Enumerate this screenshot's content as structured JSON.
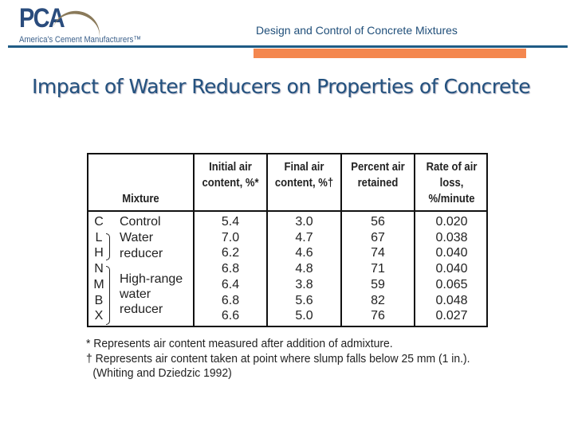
{
  "header": {
    "logo_text": "PCA",
    "logo_tagline": "America's Cement Manufacturers™",
    "title": "Design and Control of Concrete Mixtures",
    "accent_blue": "#1f5c85",
    "accent_orange": "#f4874f"
  },
  "slide_title": "Impact of Water Reducers on Properties of Concrete",
  "table": {
    "headers": [
      "Mixture",
      "Initial air content, %*",
      "Final air content, %†",
      "Percent air retained",
      "Rate of air loss, %/minute"
    ],
    "mixture_codes": [
      "C",
      "L",
      "H",
      "N",
      "M",
      "B",
      "X"
    ],
    "groups": [
      "Control",
      "Water reducer",
      "High-range water reducer"
    ],
    "initial_air": [
      "5.4",
      "7.0",
      "6.2",
      "6.8",
      "6.4",
      "6.8",
      "6.6"
    ],
    "final_air": [
      "3.0",
      "4.7",
      "4.6",
      "4.8",
      "3.8",
      "5.6",
      "5.0"
    ],
    "percent_retained": [
      "56",
      "67",
      "74",
      "71",
      "59",
      "82",
      "76"
    ],
    "rate_loss": [
      "0.020",
      "0.038",
      "0.040",
      "0.040",
      "0.065",
      "0.048",
      "0.027"
    ]
  },
  "notes": [
    "* Represents air content measured after addition of admixture.",
    "† Represents air content taken at point where slump falls below 25 mm (1 in.).",
    "(Whiting and Dziedzic 1992)"
  ]
}
